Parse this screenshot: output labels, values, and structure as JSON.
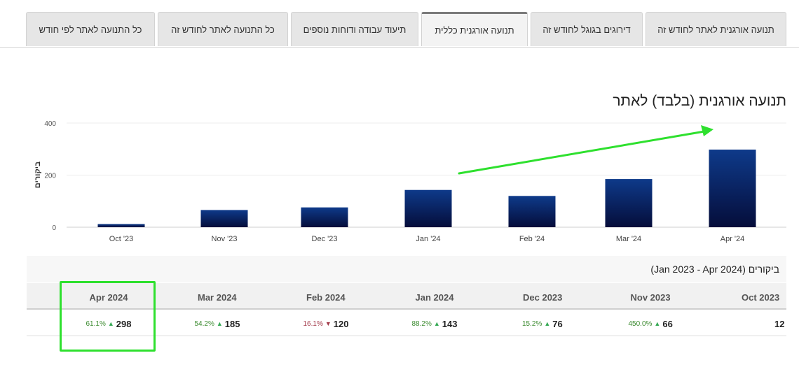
{
  "tabs": [
    {
      "label": "תנועה אורגנית לאתר לחודש זה",
      "active": false
    },
    {
      "label": "דירוגים בגוגל לחודש זה",
      "active": false
    },
    {
      "label": "תנועה אורגנית כללית",
      "active": true
    },
    {
      "label": "תיעוד עבודה ודוחות נוספים",
      "active": false
    },
    {
      "label": "כל התנועה לאתר לחודש זה",
      "active": false
    },
    {
      "label": "כל התנועה לאתר לפי חודש",
      "active": false
    }
  ],
  "page_title": "תנועה אורגנית (בלבד) לאתר",
  "chart_data": {
    "type": "bar",
    "title": "תנועה אורגנית (בלבד) לאתר",
    "ylabel": "ביקורים",
    "xlabel": "",
    "categories": [
      "Oct '23",
      "Nov '23",
      "Dec '23",
      "Jan '24",
      "Feb '24",
      "Mar '24",
      "Apr '24"
    ],
    "values": [
      12,
      66,
      76,
      143,
      120,
      185,
      298
    ],
    "ylim": [
      0,
      400
    ],
    "yticks": [
      0,
      200,
      400
    ],
    "grid": true,
    "bar_color": "#0d2a6b"
  },
  "table": {
    "caption": "ביקורים (Jan 2023 - Apr 2024)",
    "columns": [
      "Oct 2023",
      "Nov 2023",
      "Dec 2023",
      "Jan 2024",
      "Feb 2024",
      "Mar 2024",
      "Apr 2024"
    ],
    "values": [
      "12",
      "66",
      "76",
      "143",
      "120",
      "185",
      "298"
    ],
    "changes": [
      null,
      {
        "pct": "450.0%",
        "dir": "up"
      },
      {
        "pct": "15.2%",
        "dir": "up"
      },
      {
        "pct": "88.2%",
        "dir": "up"
      },
      {
        "pct": "16.1%",
        "dir": "down"
      },
      {
        "pct": "54.2%",
        "dir": "up"
      },
      {
        "pct": "61.1%",
        "dir": "up"
      }
    ]
  },
  "colors": {
    "highlight": "#2ee02e",
    "trend_arrow": "#2ee02e",
    "up": "#34a853",
    "down": "#a33a4a"
  }
}
